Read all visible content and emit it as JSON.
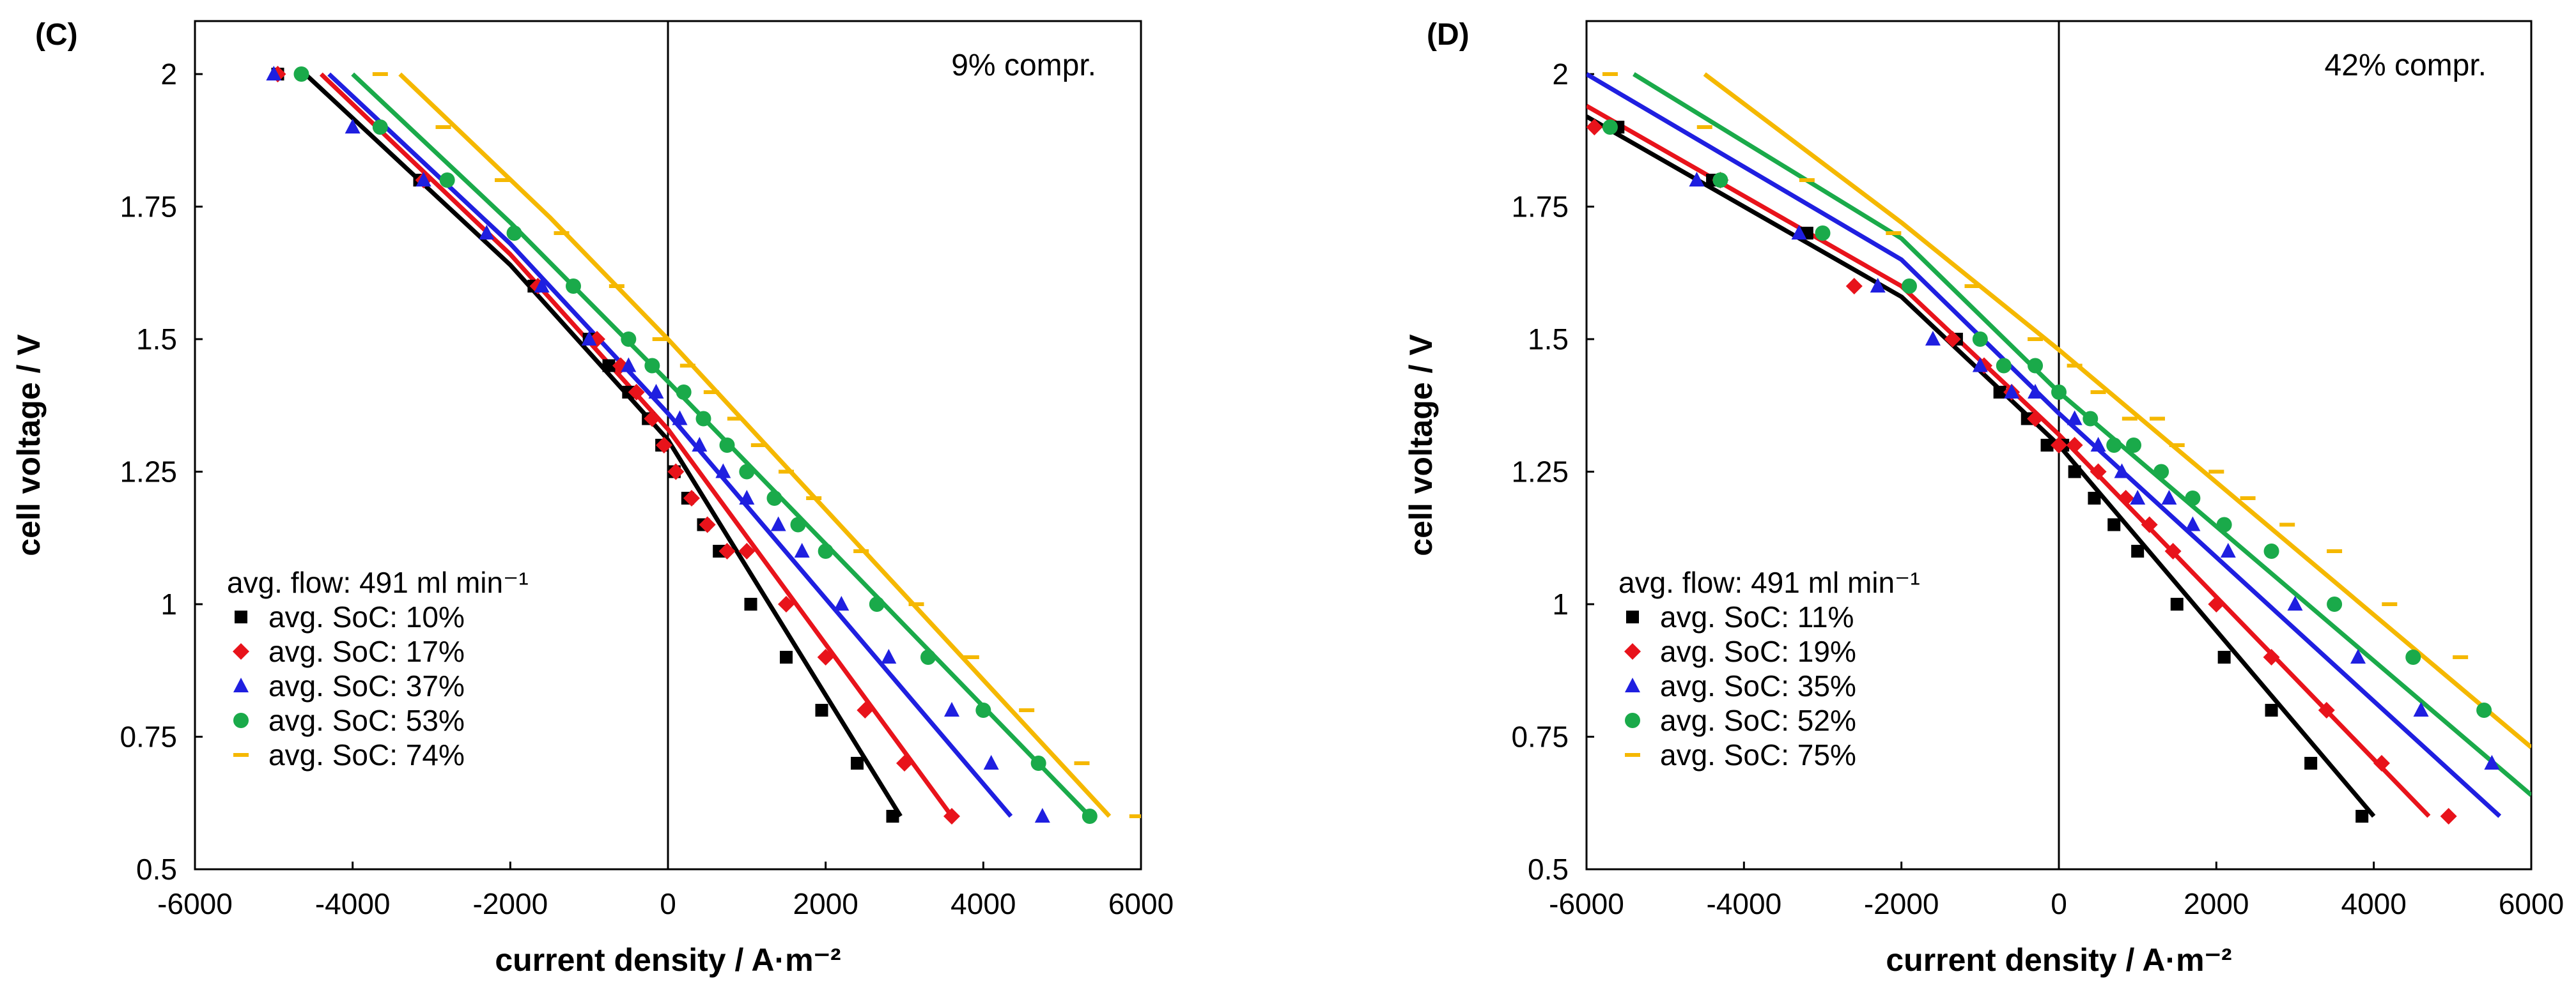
{
  "chart_data": [
    {
      "type": "scatter",
      "panel_label": "(C)",
      "annotation": "9% compr.",
      "xlabel": "current density  / A·m⁻²",
      "ylabel": "cell voltage / V",
      "xlim": [
        -6000,
        6000
      ],
      "ylim": [
        0.5,
        2.1
      ],
      "x_ticks": [
        -6000,
        -4000,
        -2000,
        0,
        2000,
        4000,
        6000
      ],
      "x_tick_labels": [
        "-6000",
        "-4000",
        "-2000",
        "0",
        "2000",
        "4000",
        "6000"
      ],
      "y_ticks": [
        0.5,
        0.75,
        1,
        1.25,
        1.5,
        1.75,
        2
      ],
      "y_tick_labels": [
        "0.5",
        "0.75",
        "1",
        "1.25",
        "1.5",
        "1.75",
        "2"
      ],
      "legend_title": "avg. flow: 491 ml min⁻¹",
      "legend_position": "lower-left",
      "series": [
        {
          "name": "avg. SoC: 10%",
          "color": "#000000",
          "marker": "square",
          "x": [
            -4950,
            -3150,
            -1700,
            -1000,
            -750,
            -500,
            -250,
            -80,
            80,
            250,
            450,
            650,
            1050,
            1500,
            1950,
            2400,
            2850
          ],
          "y": [
            2,
            1.8,
            1.6,
            1.5,
            1.45,
            1.4,
            1.35,
            1.3,
            1.25,
            1.2,
            1.15,
            1.1,
            1,
            0.9,
            0.8,
            0.7,
            0.6
          ],
          "fit_x": [
            -4600,
            -2000,
            0,
            2950
          ],
          "fit_y": [
            2,
            1.64,
            1.31,
            0.6
          ]
        },
        {
          "name": "avg. SoC: 17%",
          "color": "#e8131b",
          "marker": "diamond",
          "x": [
            -4950,
            -3100,
            -1650,
            -900,
            -600,
            -400,
            -200,
            -50,
            100,
            300,
            500,
            750,
            1000,
            1500,
            2000,
            2500,
            3000,
            3600
          ],
          "y": [
            2,
            1.8,
            1.6,
            1.5,
            1.45,
            1.4,
            1.35,
            1.3,
            1.25,
            1.2,
            1.15,
            1.1,
            1.1,
            1,
            0.9,
            0.8,
            0.7,
            0.6
          ],
          "fit_x": [
            -4400,
            -2000,
            0,
            3600
          ],
          "fit_y": [
            2,
            1.66,
            1.33,
            0.6
          ]
        },
        {
          "name": "avg. SoC: 37%",
          "color": "#1f1fe0",
          "marker": "triangle",
          "x": [
            -5000,
            -4000,
            -3100,
            -2300,
            -1600,
            -1000,
            -500,
            -150,
            150,
            400,
            700,
            1000,
            1400,
            1700,
            2200,
            2800,
            3600,
            4100,
            4750
          ],
          "y": [
            2,
            1.9,
            1.8,
            1.7,
            1.6,
            1.5,
            1.45,
            1.4,
            1.35,
            1.3,
            1.25,
            1.2,
            1.15,
            1.1,
            1,
            0.9,
            0.8,
            0.7,
            0.6
          ],
          "fit_x": [
            -4300,
            -2000,
            0,
            4350
          ],
          "fit_y": [
            2,
            1.68,
            1.36,
            0.6
          ]
        },
        {
          "name": "avg. SoC: 53%",
          "color": "#1aaa4a",
          "marker": "circle",
          "x": [
            -4650,
            -3650,
            -2800,
            -1950,
            -1200,
            -500,
            -200,
            200,
            450,
            750,
            1000,
            1350,
            1650,
            2000,
            2650,
            3300,
            4000,
            4700,
            5350
          ],
          "y": [
            2,
            1.9,
            1.8,
            1.7,
            1.6,
            1.5,
            1.45,
            1.4,
            1.35,
            1.3,
            1.25,
            1.2,
            1.15,
            1.1,
            1,
            0.9,
            0.8,
            0.7,
            0.6
          ],
          "fit_x": [
            -4000,
            -2000,
            0,
            5350
          ],
          "fit_y": [
            2,
            1.72,
            1.42,
            0.6
          ]
        },
        {
          "name": "avg. SoC: 74%",
          "color": "#f5b800",
          "marker": "dash",
          "x": [
            -3650,
            -2850,
            -2100,
            -1350,
            -650,
            -100,
            250,
            550,
            850,
            1150,
            1500,
            1850,
            2450,
            3150,
            3850,
            4550,
            5250,
            5950
          ],
          "y": [
            2,
            1.9,
            1.8,
            1.7,
            1.6,
            1.5,
            1.45,
            1.4,
            1.35,
            1.3,
            1.25,
            1.2,
            1.1,
            1,
            0.9,
            0.8,
            0.7,
            0.6
          ],
          "fit_x": [
            -3400,
            -1500,
            0,
            5600
          ],
          "fit_y": [
            2,
            1.73,
            1.5,
            0.6
          ]
        }
      ]
    },
    {
      "type": "scatter",
      "panel_label": "(D)",
      "annotation": "42% compr.",
      "xlabel": "current density  / A·m⁻²",
      "ylabel": "cell voltage / V",
      "xlim": [
        -6000,
        6000
      ],
      "ylim": [
        0.5,
        2.1
      ],
      "x_ticks": [
        -6000,
        -4000,
        -2000,
        0,
        2000,
        4000,
        6000
      ],
      "x_tick_labels": [
        "-6000",
        "-4000",
        "-2000",
        "0",
        "2000",
        "4000",
        "6000"
      ],
      "y_ticks": [
        0.5,
        0.75,
        1,
        1.25,
        1.5,
        1.75,
        2
      ],
      "y_tick_labels": [
        "0.5",
        "0.75",
        "1",
        "1.25",
        "1.5",
        "1.75",
        "2"
      ],
      "legend_title": "avg. flow: 491 ml min⁻¹",
      "legend_position": "lower-left",
      "series": [
        {
          "name": "avg. SoC: 11%",
          "color": "#000000",
          "marker": "square",
          "x": [
            -5600,
            -4400,
            -3200,
            -1300,
            -750,
            -400,
            -150,
            50,
            200,
            450,
            700,
            1000,
            1500,
            2100,
            2700,
            3200,
            3850
          ],
          "y": [
            1.9,
            1.8,
            1.7,
            1.5,
            1.4,
            1.35,
            1.3,
            1.3,
            1.25,
            1.2,
            1.15,
            1.1,
            1,
            0.9,
            0.8,
            0.7,
            0.6
          ],
          "fit_x": [
            -6000,
            -2000,
            0,
            4000
          ],
          "fit_y": [
            1.92,
            1.58,
            1.3,
            0.6
          ]
        },
        {
          "name": "avg. SoC: 19%",
          "color": "#e8131b",
          "marker": "diamond",
          "x": [
            -5900,
            -4300,
            -2600,
            -1350,
            -950,
            -600,
            -300,
            0,
            200,
            500,
            850,
            1150,
            1450,
            2000,
            2700,
            3400,
            4100,
            4950
          ],
          "y": [
            1.9,
            1.8,
            1.6,
            1.5,
            1.45,
            1.4,
            1.35,
            1.3,
            1.3,
            1.25,
            1.2,
            1.15,
            1.1,
            1,
            0.9,
            0.8,
            0.7,
            0.6
          ],
          "fit_x": [
            -6000,
            -2000,
            0,
            4700
          ],
          "fit_y": [
            1.94,
            1.6,
            1.32,
            0.6
          ]
        },
        {
          "name": "avg. SoC: 35%",
          "color": "#1f1fe0",
          "marker": "triangle",
          "x": [
            -4600,
            -3300,
            -2300,
            -1600,
            -1000,
            -600,
            -300,
            200,
            500,
            800,
            1000,
            1400,
            1700,
            2150,
            3000,
            3800,
            4600,
            5500
          ],
          "y": [
            1.8,
            1.7,
            1.6,
            1.5,
            1.45,
            1.4,
            1.4,
            1.35,
            1.3,
            1.25,
            1.2,
            1.2,
            1.15,
            1.1,
            1,
            0.9,
            0.8,
            0.7
          ],
          "fit_x": [
            -6000,
            -2000,
            0,
            5600
          ],
          "fit_y": [
            2,
            1.65,
            1.36,
            0.6
          ]
        },
        {
          "name": "avg. SoC: 52%",
          "color": "#1aaa4a",
          "marker": "circle",
          "x": [
            -5700,
            -4300,
            -3000,
            -1900,
            -1000,
            -700,
            -300,
            0,
            400,
            700,
            950,
            1300,
            1700,
            2100,
            2700,
            3500,
            4500,
            5400
          ],
          "y": [
            1.9,
            1.8,
            1.7,
            1.6,
            1.5,
            1.45,
            1.45,
            1.4,
            1.35,
            1.3,
            1.3,
            1.25,
            1.2,
            1.15,
            1.1,
            1,
            0.9,
            0.8
          ],
          "fit_x": [
            -5400,
            -2000,
            0,
            6000
          ],
          "fit_y": [
            2,
            1.69,
            1.4,
            0.64
          ]
        },
        {
          "name": "avg. SoC: 75%",
          "color": "#f5b800",
          "marker": "dash",
          "x": [
            -5700,
            -4500,
            -3200,
            -2100,
            -1100,
            -300,
            200,
            500,
            900,
            1250,
            1500,
            2000,
            2400,
            2900,
            3500,
            4200,
            5100
          ],
          "y": [
            2,
            1.9,
            1.8,
            1.7,
            1.6,
            1.5,
            1.45,
            1.4,
            1.35,
            1.35,
            1.3,
            1.25,
            1.2,
            1.15,
            1.1,
            1,
            0.9
          ],
          "fit_x": [
            -4500,
            -2000,
            0,
            6000
          ],
          "fit_y": [
            2,
            1.72,
            1.48,
            0.73
          ]
        }
      ]
    }
  ]
}
